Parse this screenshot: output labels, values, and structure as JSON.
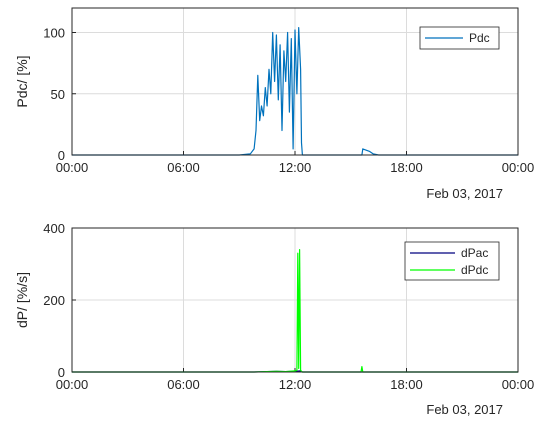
{
  "chart_data": [
    {
      "type": "line",
      "ylabel": "Pdc/ [%]",
      "x_tick_labels": [
        "00:00",
        "06:00",
        "12:00",
        "18:00",
        "00:00"
      ],
      "date_label": "Feb 03, 2017",
      "xlim_hours": [
        0,
        24
      ],
      "ylim": [
        0,
        120
      ],
      "y_ticks": [
        0,
        50,
        100
      ],
      "y_tick_labels": [
        "0",
        "50",
        "100"
      ],
      "grid": true,
      "legend_position": "top-right",
      "series": [
        {
          "name": "Pdc",
          "color": "#0072bd",
          "x": [
            0,
            9.0,
            9.6,
            9.8,
            9.9,
            10.0,
            10.1,
            10.2,
            10.3,
            10.4,
            10.5,
            10.6,
            10.7,
            10.8,
            10.9,
            11.0,
            11.1,
            11.2,
            11.3,
            11.4,
            11.5,
            11.6,
            11.7,
            11.8,
            11.9,
            12.0,
            12.1,
            12.2,
            12.3,
            12.35,
            12.4,
            12.45,
            15.6,
            15.65,
            16.0,
            16.2,
            16.5,
            24
          ],
          "y": [
            0,
            0,
            1,
            5,
            20,
            65,
            28,
            40,
            32,
            55,
            40,
            70,
            50,
            100,
            60,
            98,
            45,
            90,
            20,
            85,
            60,
            100,
            35,
            95,
            5,
            102,
            50,
            104,
            70,
            10,
            0,
            0,
            0,
            5,
            3,
            1,
            0,
            0
          ]
        }
      ]
    },
    {
      "type": "line",
      "ylabel": "dP/ [%/s]",
      "x_tick_labels": [
        "00:00",
        "06:00",
        "12:00",
        "18:00",
        "00:00"
      ],
      "date_label": "Feb 03, 2017",
      "xlim_hours": [
        0,
        24
      ],
      "ylim": [
        0,
        400
      ],
      "y_ticks": [
        0,
        200,
        400
      ],
      "y_tick_labels": [
        "0",
        "200",
        "400"
      ],
      "grid": true,
      "legend_position": "top-right",
      "series": [
        {
          "name": "dPac",
          "color": "#00007f",
          "x": [
            0,
            9.8,
            10.5,
            11.0,
            11.5,
            12.0,
            12.3,
            12.4,
            15.6,
            24
          ],
          "y": [
            0,
            0,
            1,
            2,
            1,
            2,
            3,
            0,
            0,
            0
          ]
        },
        {
          "name": "dPdc",
          "color": "#00ff00",
          "x": [
            0,
            9.8,
            10.5,
            11.0,
            11.5,
            12.0,
            12.1,
            12.15,
            12.2,
            12.25,
            12.3,
            12.35,
            12.4,
            15.55,
            15.6,
            15.65,
            24
          ],
          "y": [
            0,
            0,
            1,
            2,
            1,
            3,
            5,
            330,
            10,
            340,
            5,
            2,
            0,
            0,
            15,
            0,
            0
          ]
        }
      ]
    }
  ]
}
